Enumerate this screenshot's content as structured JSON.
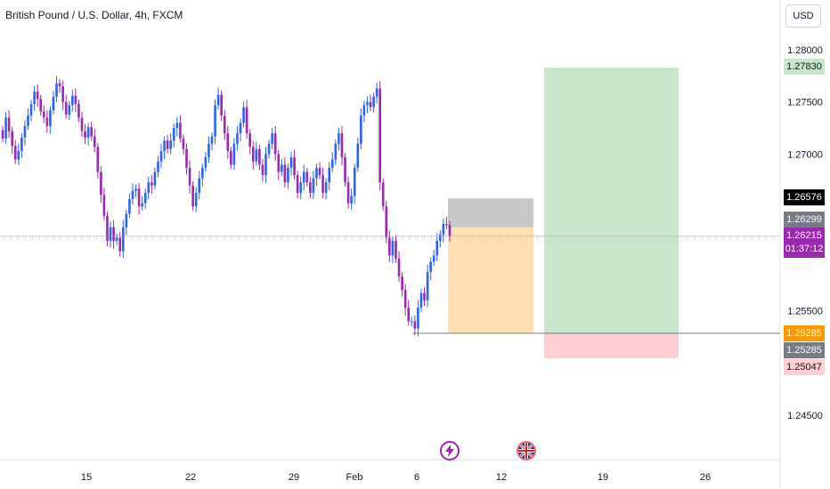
{
  "title": "British Pound / U.S. Dollar, 4h, FXCM",
  "currency": "USD",
  "chart_data": {
    "type": "candlestick",
    "symbol": "GBP/USD",
    "timeframe": "4h",
    "x_ticks": [
      "15",
      "22",
      "29",
      "Feb",
      "6",
      "12",
      "19",
      "26"
    ],
    "y_ticks": [
      "1.28000",
      "1.27500",
      "1.27000",
      "1.25500",
      "1.24500"
    ],
    "ylim": [
      1.2435,
      1.2817
    ],
    "close_series": [
      1.2715,
      1.2735,
      1.2722,
      1.2708,
      1.2695,
      1.2703,
      1.2716,
      1.2727,
      1.2737,
      1.2748,
      1.276,
      1.2753,
      1.2741,
      1.2735,
      1.2727,
      1.2742,
      1.2755,
      1.2768,
      1.2765,
      1.275,
      1.2738,
      1.2747,
      1.2756,
      1.2748,
      1.2735,
      1.2722,
      1.2716,
      1.2726,
      1.2717,
      1.2707,
      1.2683,
      1.2661,
      1.2641,
      1.2617,
      1.263,
      1.2617,
      1.262,
      1.2607,
      1.263,
      1.2643,
      1.2657,
      1.2665,
      1.2667,
      1.265,
      1.2653,
      1.2663,
      1.2673,
      1.267,
      1.2683,
      1.2693,
      1.2703,
      1.2713,
      1.2705,
      1.2713,
      1.2725,
      1.273,
      1.2715,
      1.2705,
      1.2687,
      1.267,
      1.265,
      1.2663,
      1.2677,
      1.2687,
      1.2697,
      1.271,
      1.2717,
      1.2747,
      1.2757,
      1.2737,
      1.272,
      1.2703,
      1.269,
      1.271,
      1.272,
      1.273,
      1.2745,
      1.272,
      1.2707,
      1.2693,
      1.2705,
      1.269,
      1.268,
      1.27,
      1.271,
      1.272,
      1.27,
      1.2683,
      1.269,
      1.2673,
      1.2687,
      1.2697,
      1.268,
      1.2663,
      1.2673,
      1.2683,
      1.2673,
      1.2663,
      1.2677,
      1.2687,
      1.268,
      1.2663,
      1.2673,
      1.2687,
      1.2695,
      1.271,
      1.272,
      1.2697,
      1.2673,
      1.2653,
      1.266,
      1.2687,
      1.271,
      1.2737,
      1.2747,
      1.275,
      1.2745,
      1.2755,
      1.2763,
      1.2673,
      1.265,
      1.262,
      1.2603,
      1.2617,
      1.26,
      1.2583,
      1.257,
      1.2553,
      1.254,
      1.254,
      1.2533,
      1.2553,
      1.2567,
      1.256,
      1.2587,
      1.2597,
      1.2603,
      1.2617,
      1.2623,
      1.2633,
      1.2632,
      1.26215
    ],
    "annotations": {
      "last_price": "1.26215",
      "countdown": "01:37:12",
      "horizontal_line": "1.25285",
      "price_labels": [
        "1.27830",
        "1.26576",
        "1.26299",
        "1.25285",
        "1.25285",
        "1.25047"
      ],
      "long_position": {
        "entry": 1.25285,
        "target": 1.2783,
        "stop": 1.25047,
        "start": "Feb 15",
        "end": "Feb 24"
      },
      "range_box_gray": {
        "top": 1.26576,
        "bottom": 1.26299
      },
      "range_box_orange": {
        "top": 1.26299,
        "bottom": 1.25285
      }
    },
    "grid": false
  },
  "colors": {
    "bull": "#2962ff",
    "bear": "#9c27b0",
    "target_zone": "#c8e6c9",
    "stop_zone": "#ffcdd2",
    "orange_zone": "#ffe0b2",
    "gray_zone": "#bdbdbd",
    "current_price_tag": "#9c27b0",
    "entry_tag": "#ff9800",
    "target_tag": "#c8e6c9",
    "stop_tag": "#ffcdd2"
  },
  "icons": [
    "lightning-icon",
    "uk-flag-icon"
  ]
}
